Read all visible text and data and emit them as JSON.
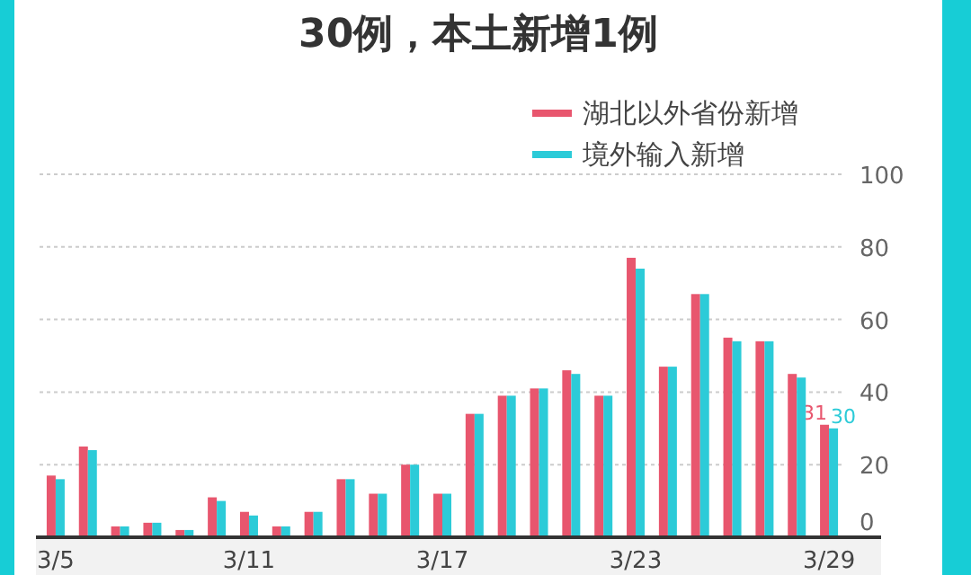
{
  "chart_data": {
    "type": "bar",
    "title": "30例，本土新增1例",
    "categories": [
      "3/5",
      null,
      null,
      null,
      null,
      null,
      "3/11",
      null,
      null,
      null,
      null,
      null,
      "3/17",
      null,
      null,
      null,
      null,
      null,
      "3/23",
      null,
      null,
      null,
      null,
      null,
      "3/29"
    ],
    "series": [
      {
        "name": "湖北以外省份新增",
        "color": "#e8566e",
        "values": [
          17,
          25,
          3,
          4,
          2,
          11,
          7,
          3,
          7,
          16,
          12,
          20,
          12,
          34,
          39,
          41,
          46,
          39,
          77,
          47,
          67,
          55,
          54,
          45,
          31
        ],
        "value_labels": [
          null,
          null,
          null,
          null,
          null,
          null,
          null,
          null,
          null,
          null,
          null,
          null,
          null,
          null,
          null,
          null,
          null,
          null,
          null,
          null,
          null,
          null,
          null,
          null,
          "31"
        ]
      },
      {
        "name": "境外输入新增",
        "color": "#2ccbd8",
        "values": [
          16,
          24,
          3,
          4,
          2,
          10,
          6,
          3,
          7,
          16,
          12,
          20,
          12,
          34,
          39,
          41,
          45,
          39,
          74,
          47,
          67,
          54,
          54,
          44,
          30
        ],
        "value_labels": [
          null,
          null,
          null,
          null,
          null,
          null,
          null,
          null,
          null,
          null,
          null,
          null,
          null,
          null,
          null,
          null,
          null,
          null,
          null,
          null,
          null,
          null,
          null,
          null,
          "30"
        ]
      }
    ],
    "ylim": [
      0,
      100
    ],
    "yticks": [
      0,
      20,
      40,
      60,
      80,
      100
    ],
    "grid": "y",
    "legend": "top right"
  }
}
